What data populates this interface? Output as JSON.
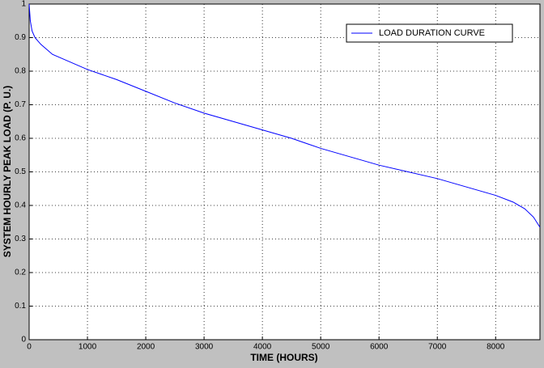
{
  "chart_data": {
    "type": "line",
    "xlabel": "TIME (HOURS)",
    "ylabel": "SYSTEM HOURLY PEAK LOAD (P. U.)",
    "x": [
      0,
      20,
      50,
      100,
      200,
      400,
      600,
      800,
      1000,
      1500,
      2000,
      2500,
      3000,
      3500,
      4000,
      4500,
      5000,
      5500,
      6000,
      6500,
      7000,
      7500,
      8000,
      8300,
      8500,
      8650,
      8760
    ],
    "series": [
      {
        "name": "LOAD DURATION CURVE",
        "color": "#0000ff",
        "values": [
          1.0,
          0.95,
          0.92,
          0.9,
          0.88,
          0.85,
          0.835,
          0.82,
          0.805,
          0.775,
          0.74,
          0.705,
          0.675,
          0.65,
          0.625,
          0.6,
          0.57,
          0.545,
          0.52,
          0.5,
          0.48,
          0.455,
          0.43,
          0.41,
          0.39,
          0.365,
          0.335
        ]
      }
    ],
    "xlim": [
      0,
      8760
    ],
    "xticks": [
      0,
      1000,
      2000,
      3000,
      4000,
      5000,
      6000,
      7000,
      8000
    ],
    "ylim": [
      0,
      1
    ],
    "yticks": [
      0,
      0.1,
      0.2,
      0.3,
      0.4,
      0.5,
      0.6,
      0.7,
      0.8,
      0.9,
      1
    ],
    "grid": true,
    "legend": "top-right"
  }
}
